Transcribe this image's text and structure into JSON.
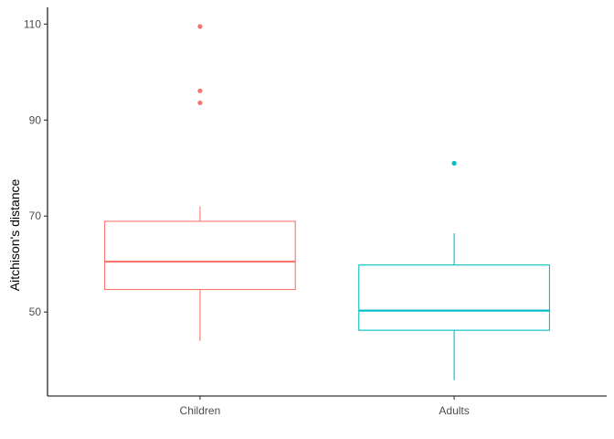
{
  "chart_data": {
    "type": "boxplot",
    "xlabel": "",
    "ylabel": "Aitchison's distance",
    "ylim": [
      32.5,
      113.5
    ],
    "y_ticks": [
      50,
      70,
      90,
      110
    ],
    "categories": [
      "Children",
      "Adults"
    ],
    "grid": false,
    "legend": "none",
    "series": [
      {
        "category": "Children",
        "color": "#F8766D",
        "whisker_low": 44.0,
        "q1": 54.7,
        "median": 60.5,
        "q3": 68.9,
        "whisker_high": 72.0,
        "outliers": [
          93.6,
          96.1,
          109.5
        ]
      },
      {
        "category": "Adults",
        "color": "#00BFC4",
        "whisker_low": 35.8,
        "q1": 46.2,
        "median": 50.3,
        "q3": 59.8,
        "whisker_high": 66.4,
        "outliers": [
          81.0
        ]
      }
    ]
  }
}
